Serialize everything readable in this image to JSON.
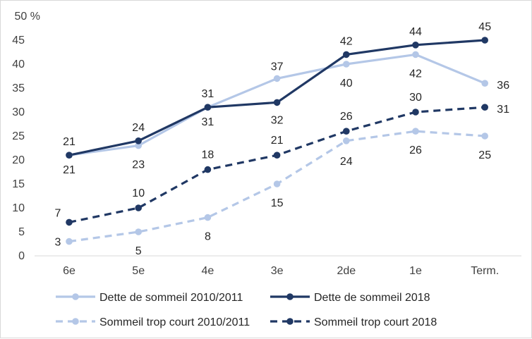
{
  "chart_data": {
    "type": "line",
    "categories": [
      "6e",
      "5e",
      "4e",
      "3e",
      "2de",
      "1e",
      "Term."
    ],
    "y_unit_label": "50 %",
    "y_ticks": [
      "0",
      "5",
      "10",
      "15",
      "20",
      "25",
      "30",
      "35",
      "40",
      "45",
      "50 %"
    ],
    "ylim": [
      0,
      50
    ],
    "grid": false,
    "legend_position": "bottom",
    "series": [
      {
        "name": "Dette de sommeil 2010/2011",
        "values": [
          21,
          23,
          31,
          37,
          40,
          42,
          36
        ],
        "labels": [
          "21",
          "23",
          "31",
          "37",
          "40",
          "42",
          "36"
        ],
        "color": "#b4c7e7",
        "dashed": false
      },
      {
        "name": "Dette de sommeil 2018",
        "values": [
          21,
          24,
          31,
          32,
          42,
          44,
          45
        ],
        "labels": [
          "21",
          "24",
          "31",
          "32",
          "42",
          "44",
          "45"
        ],
        "color": "#203864",
        "dashed": false
      },
      {
        "name": "Sommeil trop court 2010/2011",
        "values": [
          3,
          5,
          8,
          15,
          24,
          26,
          25
        ],
        "labels": [
          "3",
          "5",
          "8",
          "15",
          "24",
          "26",
          "25"
        ],
        "color": "#b4c7e7",
        "dashed": true
      },
      {
        "name": "Sommeil trop court 2018",
        "values": [
          7,
          10,
          18,
          21,
          26,
          30,
          31
        ],
        "labels": [
          "7",
          "10",
          "18",
          "21",
          "26",
          "30",
          "31"
        ],
        "color": "#203864",
        "dashed": true
      }
    ]
  }
}
